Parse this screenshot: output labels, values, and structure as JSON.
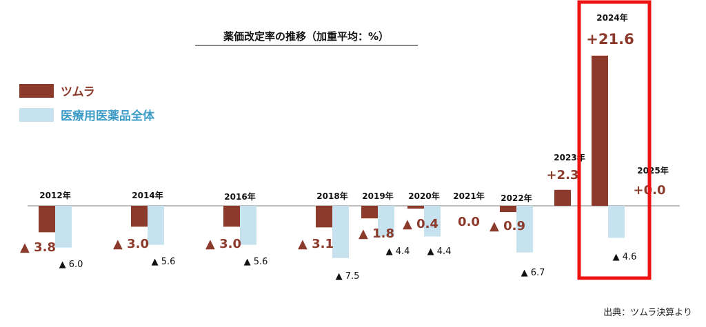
{
  "chart_data": {
    "type": "bar",
    "title": "薬価改定率の推移（加重平均：%）",
    "categories": [
      "2012年",
      "2014年",
      "2016年",
      "2018年",
      "2019年",
      "2020年",
      "2021年",
      "2022年",
      "2023年",
      "2024年",
      "2025年"
    ],
    "series": [
      {
        "name": "ツムラ",
        "color": "#8b3a2b",
        "values": [
          -3.8,
          -3.0,
          -3.0,
          -3.1,
          -1.8,
          -0.4,
          0.0,
          -0.9,
          2.3,
          21.6,
          0.0
        ],
        "labels": [
          "▲ 3.8",
          "▲ 3.0",
          "▲ 3.0",
          "▲ 3.1",
          "▲ 1.8",
          "▲ 0.4",
          "0.0",
          "▲ 0.9",
          "+2.3",
          "+21.6",
          "+0.0"
        ]
      },
      {
        "name": "医療用医薬品全体",
        "color": "#c5e2ee",
        "values": [
          -6.0,
          -5.6,
          -5.6,
          -7.5,
          -4.4,
          -4.4,
          null,
          -6.7,
          null,
          -4.6,
          null
        ],
        "labels": [
          "▲ 6.0",
          "▲ 5.6",
          "▲ 5.6",
          "▲ 7.5",
          "▲ 4.4",
          "▲ 4.4",
          null,
          "▲ 6.7",
          null,
          "▲ 4.6",
          null
        ]
      }
    ],
    "highlight": "2024年",
    "highlight_color": "#ee1111",
    "ylim": [
      -8.5,
      21.6
    ],
    "grid": false,
    "legend_position": "top-left"
  },
  "source": "出典：ツムラ決算より"
}
